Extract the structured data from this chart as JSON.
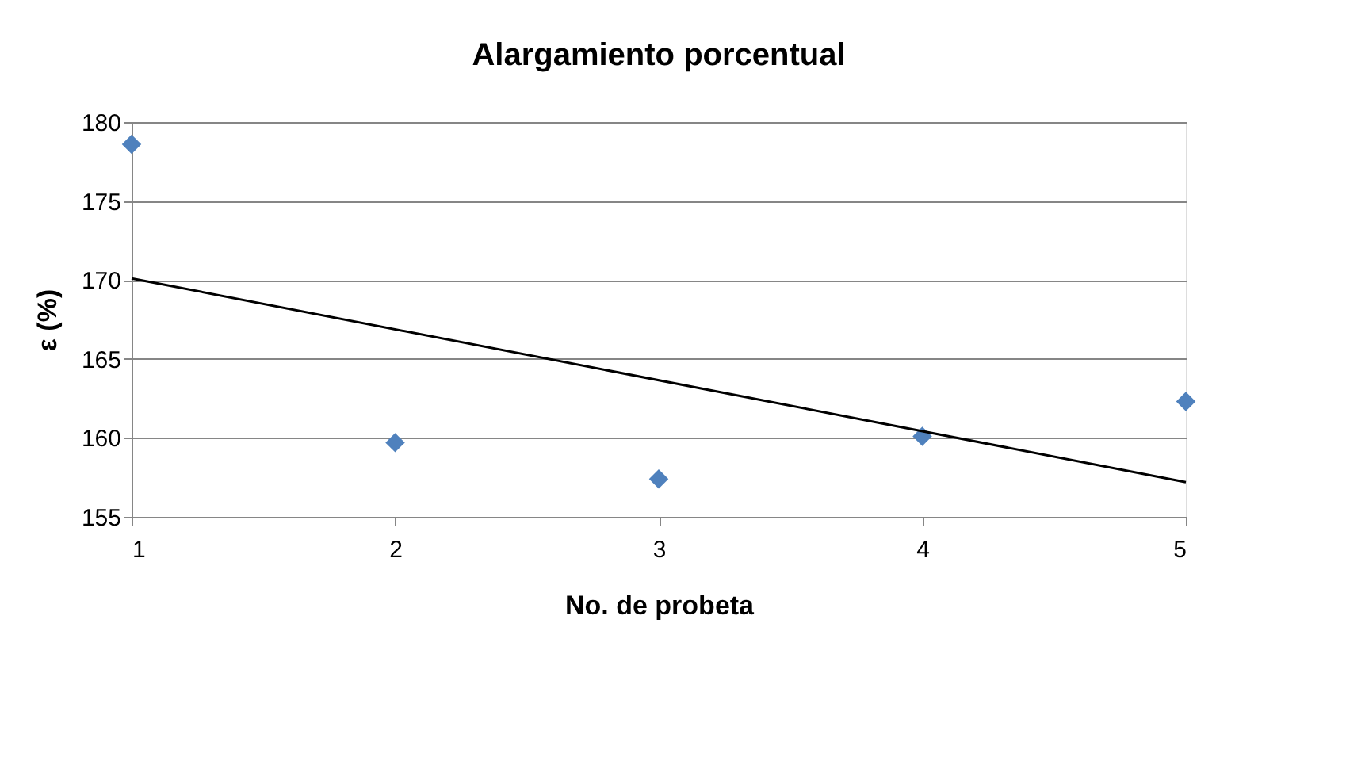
{
  "chart_data": {
    "type": "scatter",
    "title": "Alargamiento porcentual",
    "xlabel": "No. de probeta",
    "ylabel": "ε (%)",
    "x": [
      1,
      2,
      3,
      4,
      5
    ],
    "series": [
      {
        "color": "#4f81bd",
        "marker": "diamond",
        "values": [
          178.6,
          159.7,
          157.4,
          160.1,
          162.3
        ]
      },
      {
        "type": "line",
        "color": "#000000",
        "marker": "none",
        "line_style": "solid",
        "x": [
          1,
          5
        ],
        "values": [
          170.1,
          157.2
        ]
      }
    ],
    "xlim": [
      1,
      5
    ],
    "xticks": [
      1,
      2,
      3,
      4,
      5
    ],
    "ylim": [
      155,
      180
    ],
    "yticks": [
      155,
      160,
      165,
      170,
      175,
      180
    ],
    "grid": "y"
  }
}
